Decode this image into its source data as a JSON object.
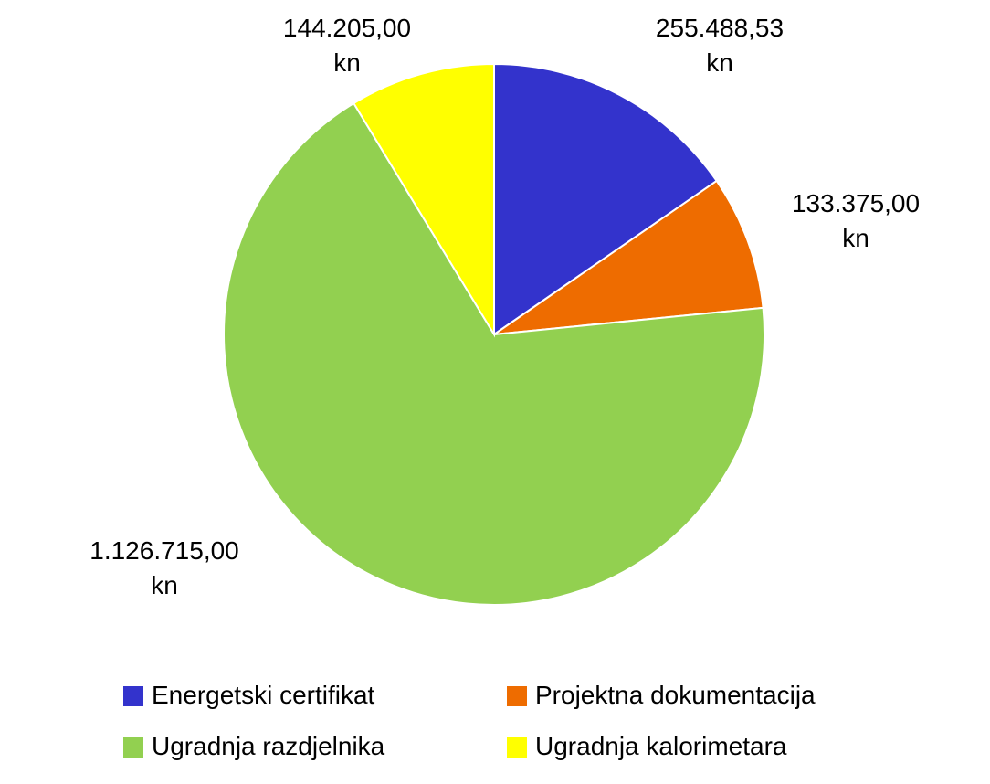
{
  "chart_data": {
    "type": "pie",
    "categories": [
      "Energetski certifikat",
      "Projektna dokumentacija",
      "Ugradnja razdjelnika",
      "Ugradnja kalorimetara"
    ],
    "values": [
      255488.53,
      133375.0,
      1126715.0,
      144205.0
    ],
    "value_labels": [
      "255.488,53\nkn",
      "133.375,00\nkn",
      "1.126.715,00\nkn",
      "144.205,00\nkn"
    ],
    "colors": [
      "#3333cc",
      "#ee6c00",
      "#92d050",
      "#ffff00"
    ],
    "legend": "bottom"
  }
}
